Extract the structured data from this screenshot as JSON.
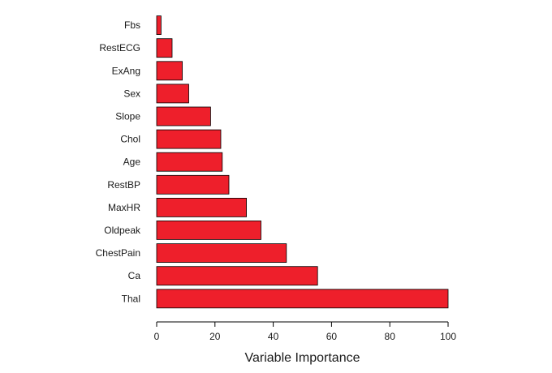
{
  "chart_data": {
    "type": "bar",
    "orientation": "horizontal",
    "categories": [
      "Thal",
      "Ca",
      "ChestPain",
      "Oldpeak",
      "MaxHR",
      "RestBP",
      "Age",
      "Chol",
      "Slope",
      "Sex",
      "ExAng",
      "RestECG",
      "Fbs"
    ],
    "values": [
      100,
      55.2,
      44.5,
      35.8,
      30.8,
      24.8,
      22.5,
      22.0,
      18.5,
      11.0,
      8.8,
      5.3,
      1.5
    ],
    "title": "",
    "xlabel": "Variable Importance",
    "ylabel": "",
    "xlim": [
      0,
      100
    ],
    "xticks": [
      0,
      20,
      40,
      60,
      80,
      100
    ],
    "grid": false,
    "bar_color": "#ee1f2b",
    "bar_edge_color": "#000000"
  }
}
